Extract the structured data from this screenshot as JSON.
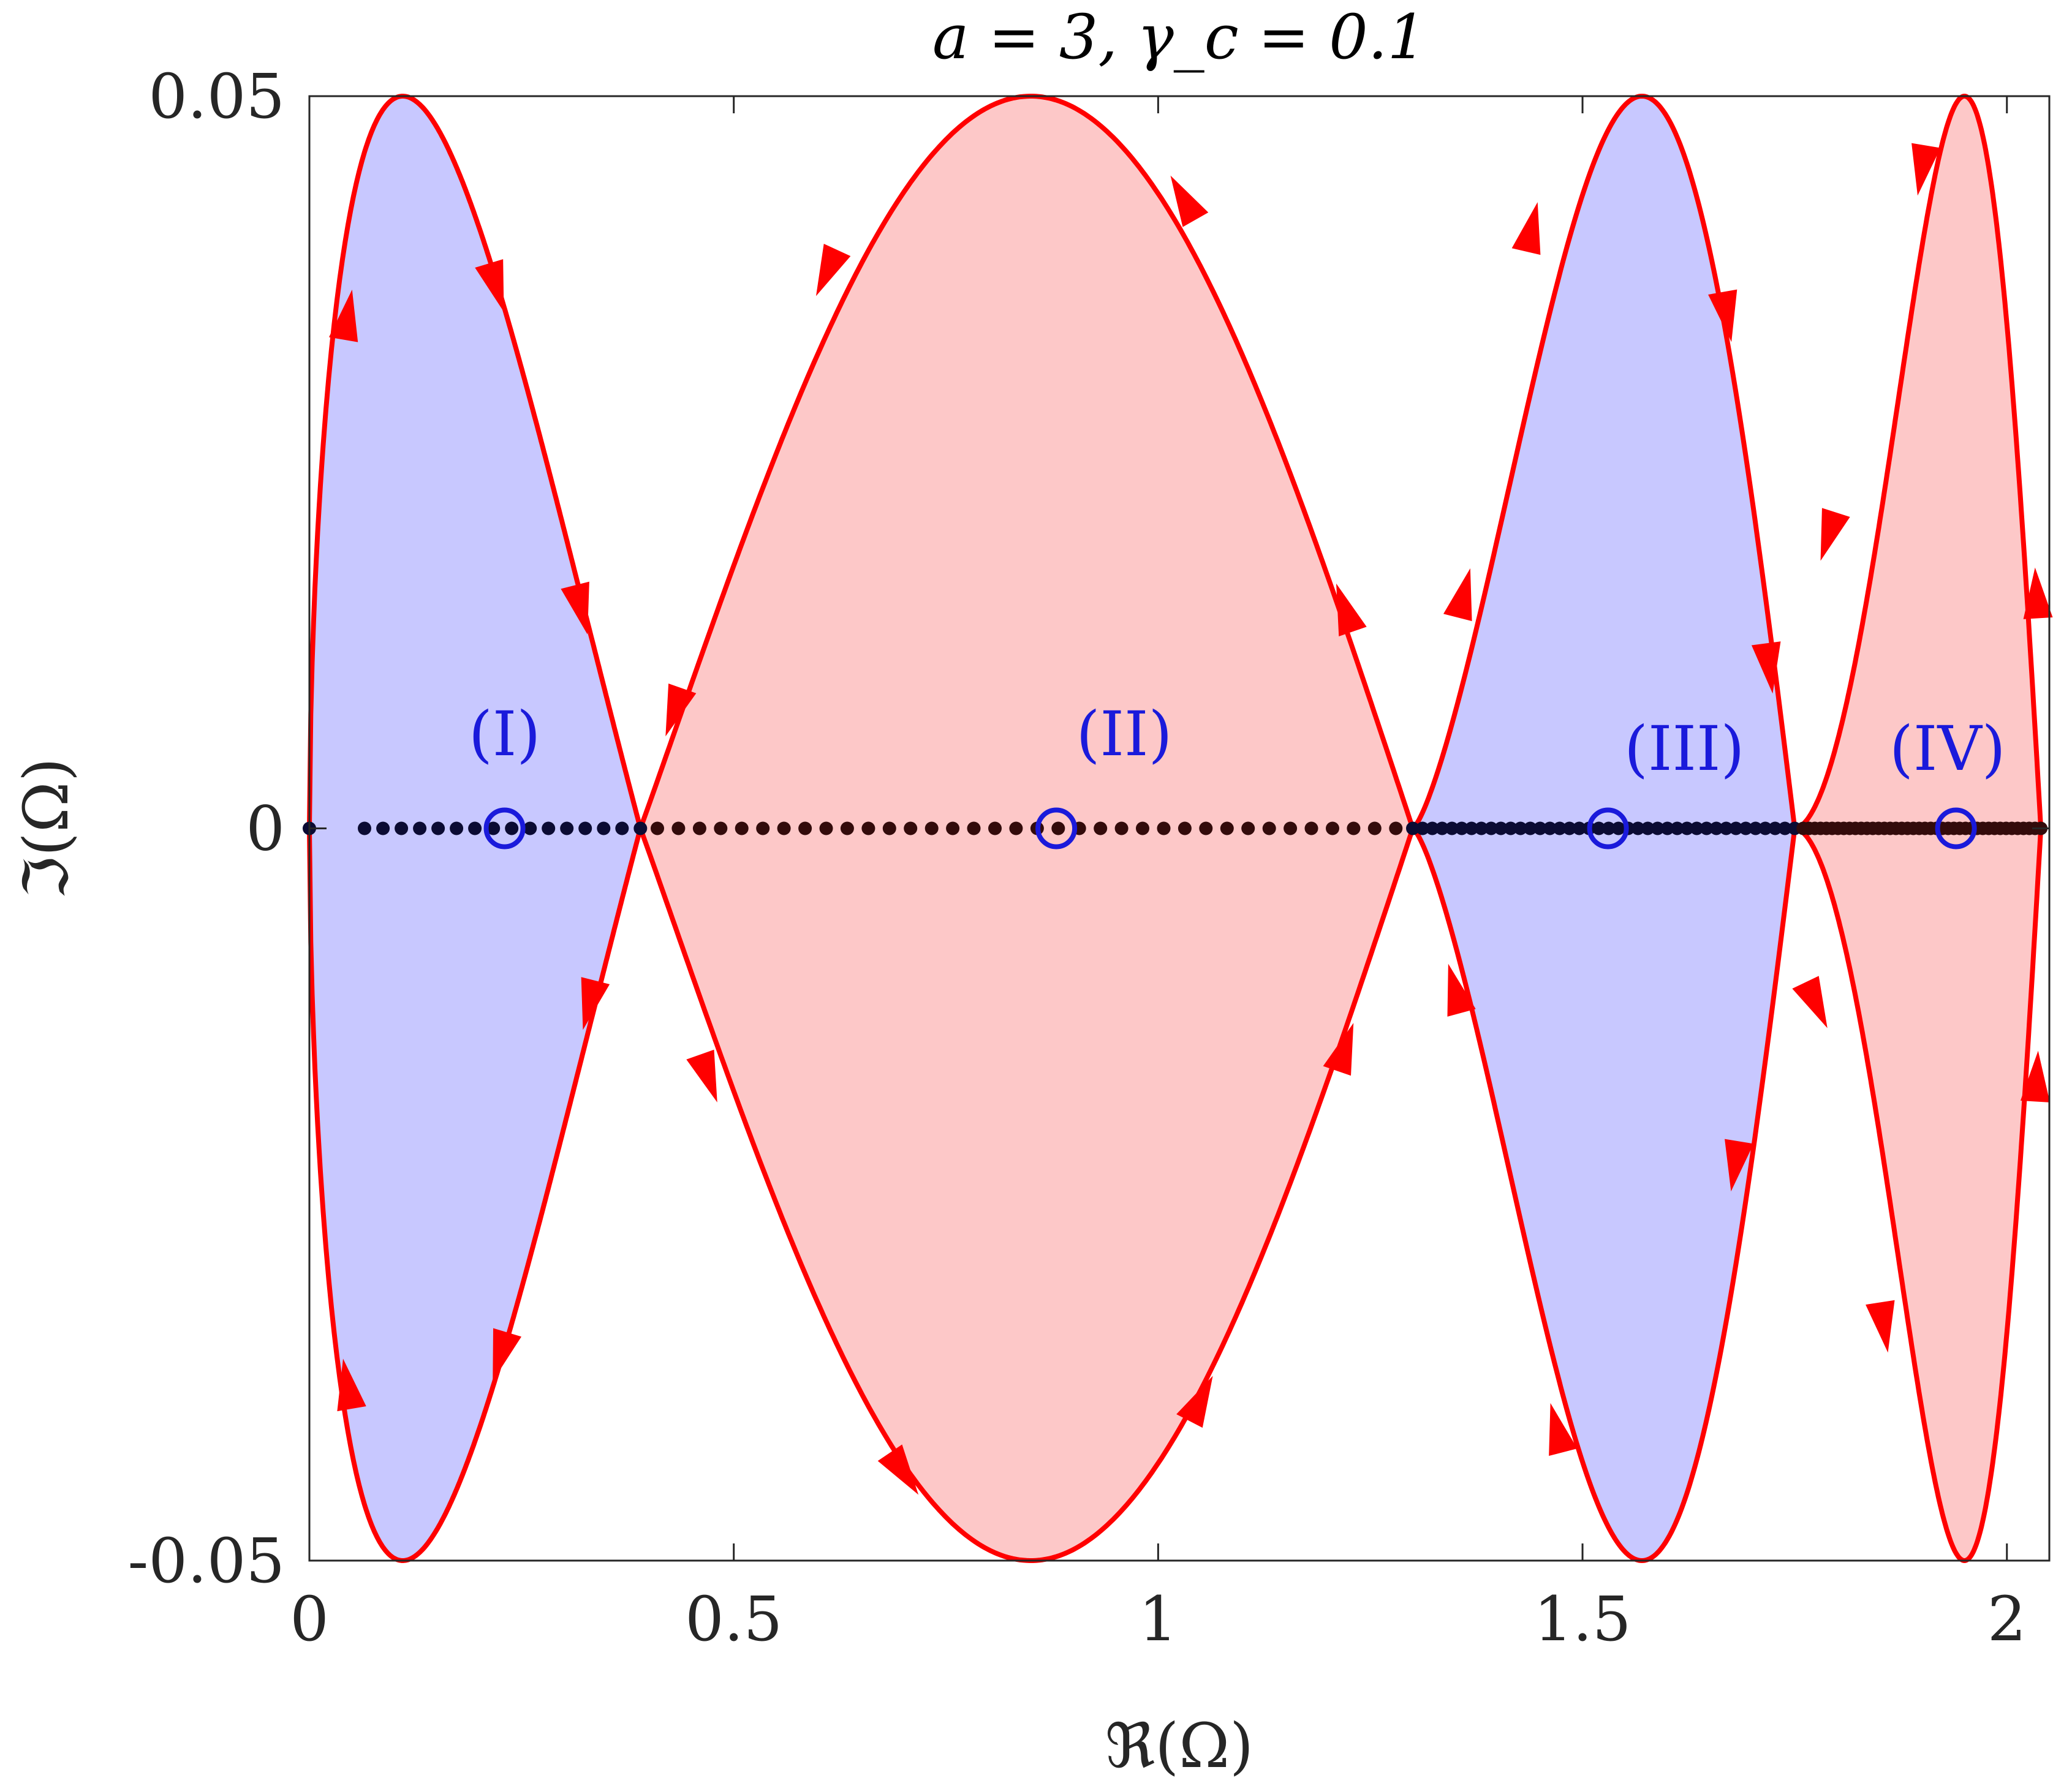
{
  "chart_data": {
    "type": "line",
    "title": "a = 3, γ_c = 0.1",
    "xlabel": "ℜ(Ω)",
    "ylabel": "ℑ(Ω)",
    "xlim": [
      0,
      2.05
    ],
    "ylim": [
      -0.05,
      0.05
    ],
    "xticks": [
      0,
      0.5,
      1,
      1.5,
      2
    ],
    "xtick_labels": [
      "0",
      "0.5",
      "1",
      "1.5",
      "2"
    ],
    "yticks": [
      -0.05,
      0,
      0.05
    ],
    "ytick_labels": [
      "-0.05",
      "0",
      "0.05"
    ],
    "grid": false,
    "legend": "none",
    "colors": {
      "contour": "#ff0000",
      "blue_fill": "#c8c8ff",
      "red_fill": "#fdc8c8",
      "annotation": "#1a1adb",
      "dots_blue": "#0b0b33",
      "dots_red": "#330b0b"
    },
    "lobes": [
      {
        "x_start": 0.0,
        "x_end": 0.39,
        "peak_x": 0.11,
        "amplitude": 0.05,
        "fill": "blue"
      },
      {
        "x_start": 0.39,
        "x_end": 1.3,
        "peak_x": 0.85,
        "amplitude": 0.05,
        "fill": "red"
      },
      {
        "x_start": 1.3,
        "x_end": 1.75,
        "peak_x": 1.57,
        "amplitude": 0.05,
        "fill": "blue"
      },
      {
        "x_start": 1.75,
        "x_end": 2.04,
        "peak_x": 1.95,
        "amplitude": 0.05,
        "fill": "red"
      }
    ],
    "arrows": [
      {
        "x": 0.045,
        "y": 0.035,
        "dir": "up"
      },
      {
        "x": 0.22,
        "y": 0.037,
        "dir": "down"
      },
      {
        "x": 0.32,
        "y": 0.015,
        "dir": "down"
      },
      {
        "x": 0.33,
        "y": -0.012,
        "dir": "down"
      },
      {
        "x": 0.225,
        "y": -0.036,
        "dir": "down"
      },
      {
        "x": 0.045,
        "y": -0.038,
        "dir": "up"
      },
      {
        "x": 0.61,
        "y": 0.038,
        "dir": "down"
      },
      {
        "x": 0.43,
        "y": 0.008,
        "dir": "down"
      },
      {
        "x": 0.47,
        "y": -0.017,
        "dir": "down"
      },
      {
        "x": 0.7,
        "y": -0.044,
        "dir": "down"
      },
      {
        "x": 1.05,
        "y": -0.039,
        "dir": "up"
      },
      {
        "x": 1.22,
        "y": -0.015,
        "dir": "up"
      },
      {
        "x": 1.22,
        "y": 0.015,
        "dir": "up"
      },
      {
        "x": 1.03,
        "y": 0.043,
        "dir": "up"
      },
      {
        "x": 1.44,
        "y": 0.041,
        "dir": "up"
      },
      {
        "x": 1.36,
        "y": 0.016,
        "dir": "up"
      },
      {
        "x": 1.35,
        "y": -0.011,
        "dir": "up"
      },
      {
        "x": 1.47,
        "y": -0.041,
        "dir": "up"
      },
      {
        "x": 1.67,
        "y": 0.035,
        "dir": "down"
      },
      {
        "x": 1.72,
        "y": 0.011,
        "dir": "down"
      },
      {
        "x": 1.68,
        "y": -0.023,
        "dir": "down"
      },
      {
        "x": 1.9,
        "y": 0.045,
        "dir": "down"
      },
      {
        "x": 1.79,
        "y": 0.02,
        "dir": "down"
      },
      {
        "x": 1.775,
        "y": -0.012,
        "dir": "down"
      },
      {
        "x": 1.855,
        "y": -0.034,
        "dir": "down"
      },
      {
        "x": 2.035,
        "y": 0.016,
        "dir": "up"
      },
      {
        "x": 2.035,
        "y": -0.017,
        "dir": "up"
      }
    ],
    "dot_segments": [
      {
        "x_start": 0.0,
        "x_end": 0.0,
        "n": 1,
        "color": "blue"
      },
      {
        "x_start": 0.065,
        "x_end": 0.39,
        "n": 16,
        "color": "blue"
      },
      {
        "x_start": 0.41,
        "x_end": 1.28,
        "n": 36,
        "color": "red"
      },
      {
        "x_start": 1.3,
        "x_end": 1.75,
        "n": 40,
        "color": "blue"
      },
      {
        "x_start": 1.76,
        "x_end": 2.04,
        "n": 42,
        "color": "red"
      }
    ],
    "markers": [
      {
        "x": 0.23,
        "y": 0,
        "label": "(I)",
        "label_x": 0.23,
        "label_y": 0.005
      },
      {
        "x": 0.88,
        "y": 0,
        "label": "(II)",
        "label_x": 0.96,
        "label_y": 0.005
      },
      {
        "x": 1.53,
        "y": 0,
        "label": "(III)",
        "label_x": 1.62,
        "label_y": 0.004
      },
      {
        "x": 1.94,
        "y": 0,
        "label": "(IV)",
        "label_x": 1.93,
        "label_y": 0.004
      }
    ]
  }
}
